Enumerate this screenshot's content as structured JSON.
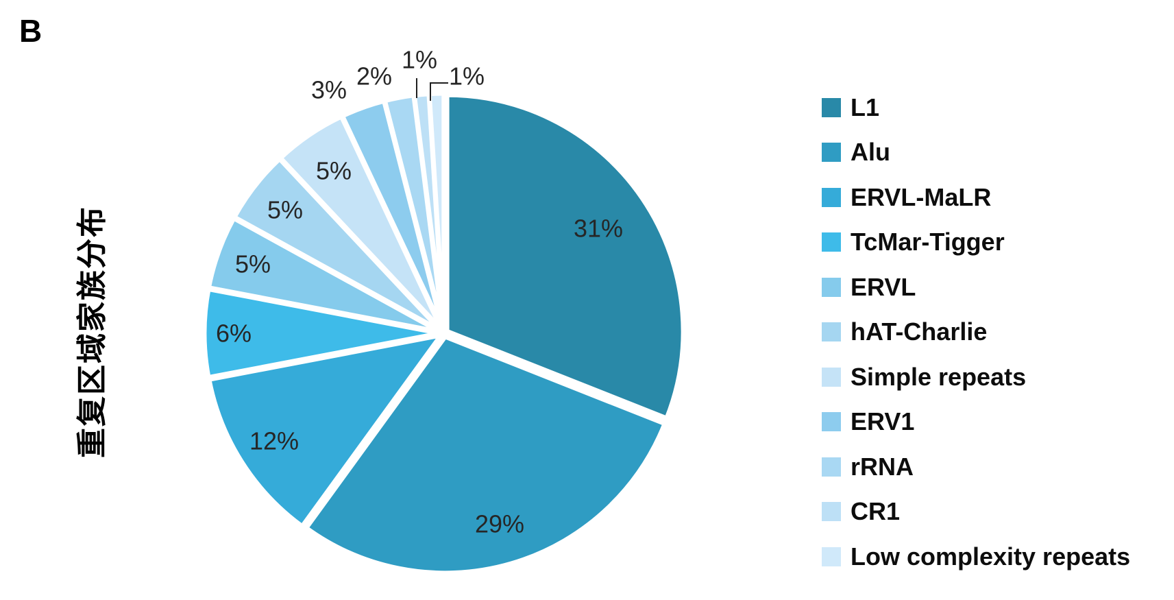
{
  "panel_label": "B",
  "chart_data": {
    "type": "pie",
    "title": "重复区域家族分布",
    "start_angle_deg": 0,
    "direction": "clockwise",
    "legend_position": "right",
    "unit": "%",
    "categories": [
      "L1",
      "Alu",
      "ERVL-MaLR",
      "TcMar-Tigger",
      "ERVL",
      "hAT-Charlie",
      "Simple repeats",
      "ERV1",
      "rRNA",
      "CR1",
      "Low complexity repeats"
    ],
    "values": [
      31,
      29,
      12,
      6,
      5,
      5,
      5,
      3,
      2,
      1,
      1
    ],
    "slice_labels": [
      "31%",
      "29%",
      "12%",
      "6%",
      "5%",
      "5%",
      "5%",
      "3%",
      "2%",
      "1%",
      "1%"
    ],
    "colors": [
      "#2989A8",
      "#2F9CC3",
      "#35ABD9",
      "#3EBBE9",
      "#85CBEC",
      "#A5D6F1",
      "#C5E3F7",
      "#8DCCEE",
      "#A9D8F3",
      "#BDE0F6",
      "#D0E9FA"
    ],
    "slice_border_color": "#ffffff",
    "label_color": "#262626",
    "leader_line_color": "#1f1f1f"
  }
}
